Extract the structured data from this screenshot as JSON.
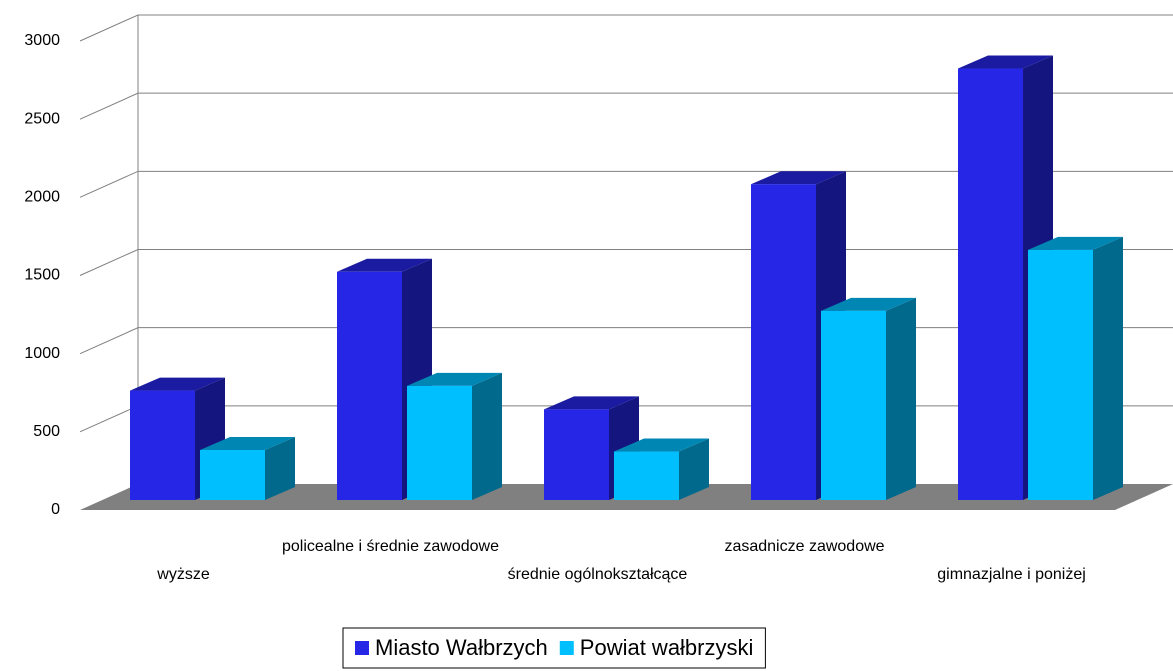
{
  "chart_data": {
    "type": "bar3d",
    "categories": [
      "wyższe",
      "policealne i średnie zawodowe",
      "średnie ogólnokształcące",
      "zasadnicze zawodowe",
      "gimnazjalne i poniżej"
    ],
    "series": [
      {
        "name": "Miasto Wałbrzych",
        "color": "#2626e6",
        "values": [
          700,
          1460,
          580,
          2020,
          2760
        ]
      },
      {
        "name": "Powiat wałbrzyski",
        "color": "#00bfff",
        "values": [
          320,
          730,
          310,
          1210,
          1600
        ]
      }
    ],
    "ylim": [
      0,
      3000
    ],
    "yticks": [
      0,
      500,
      1000,
      1500,
      2000,
      2500,
      3000
    ],
    "grid": true,
    "legend": "bottom"
  }
}
